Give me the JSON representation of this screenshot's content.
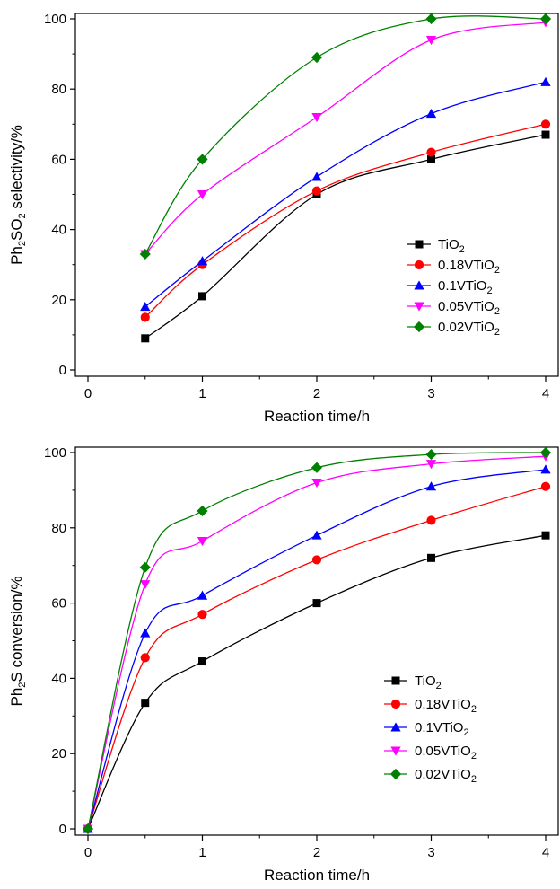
{
  "chart_data": [
    {
      "type": "line",
      "ylabel_parts": [
        "Ph",
        "2",
        "SO",
        "2",
        " selectivity/%"
      ],
      "xlabel": "Reaction time/h",
      "xlim": [
        0,
        4
      ],
      "ylim": [
        0,
        100
      ],
      "x_ticks": [
        0,
        1,
        2,
        3,
        4
      ],
      "y_ticks": [
        0,
        20,
        40,
        60,
        80,
        100
      ],
      "legend_position": "bottom-right",
      "x": [
        0.5,
        1,
        2,
        3,
        4
      ],
      "series": [
        {
          "name_parts": [
            "TiO",
            "2",
            ""
          ],
          "color": "#000000",
          "marker": "square",
          "values": [
            9,
            21,
            50,
            60,
            67
          ]
        },
        {
          "name_parts": [
            "0.18VTiO",
            "2",
            ""
          ],
          "color": "#ff0000",
          "marker": "circle",
          "values": [
            15,
            30,
            51,
            62,
            70
          ]
        },
        {
          "name_parts": [
            "0.1VTiO",
            "2",
            ""
          ],
          "color": "#0000ff",
          "marker": "triangle-up",
          "values": [
            18,
            31,
            55,
            73,
            82
          ]
        },
        {
          "name_parts": [
            "0.05VTiO",
            "2",
            ""
          ],
          "color": "#ff00ff",
          "marker": "triangle-down",
          "values": [
            33,
            50,
            72,
            94,
            99
          ]
        },
        {
          "name_parts": [
            "0.02VTiO",
            "2",
            ""
          ],
          "color": "#008000",
          "marker": "diamond",
          "values": [
            33,
            60,
            89,
            100,
            100
          ]
        }
      ]
    },
    {
      "type": "line",
      "ylabel_parts": [
        "Ph",
        "2",
        "S conversion/%",
        "",
        ""
      ],
      "xlabel": "Reaction time/h",
      "xlim": [
        0,
        4
      ],
      "ylim": [
        0,
        100
      ],
      "x_ticks": [
        0,
        1,
        2,
        3,
        4
      ],
      "y_ticks": [
        0,
        20,
        40,
        60,
        80,
        100
      ],
      "legend_position": "bottom-right",
      "x": [
        0,
        0.5,
        1,
        2,
        3,
        4
      ],
      "series": [
        {
          "name_parts": [
            "TiO",
            "2",
            ""
          ],
          "color": "#000000",
          "marker": "square",
          "values": [
            0,
            33.5,
            44.5,
            60,
            72,
            78
          ]
        },
        {
          "name_parts": [
            "0.18VTiO",
            "2",
            ""
          ],
          "color": "#ff0000",
          "marker": "circle",
          "values": [
            0,
            45.5,
            57,
            71.5,
            82,
            91
          ]
        },
        {
          "name_parts": [
            "0.1VTiO",
            "2",
            ""
          ],
          "color": "#0000ff",
          "marker": "triangle-up",
          "values": [
            0,
            52,
            62,
            78,
            91,
            95.5
          ]
        },
        {
          "name_parts": [
            "0.05VTiO",
            "2",
            ""
          ],
          "color": "#ff00ff",
          "marker": "triangle-down",
          "values": [
            0,
            65,
            76.5,
            92,
            97,
            99
          ]
        },
        {
          "name_parts": [
            "0.02VTiO",
            "2",
            ""
          ],
          "color": "#008000",
          "marker": "diamond",
          "values": [
            0,
            69.5,
            84.5,
            96,
            99.5,
            100
          ]
        }
      ]
    }
  ]
}
